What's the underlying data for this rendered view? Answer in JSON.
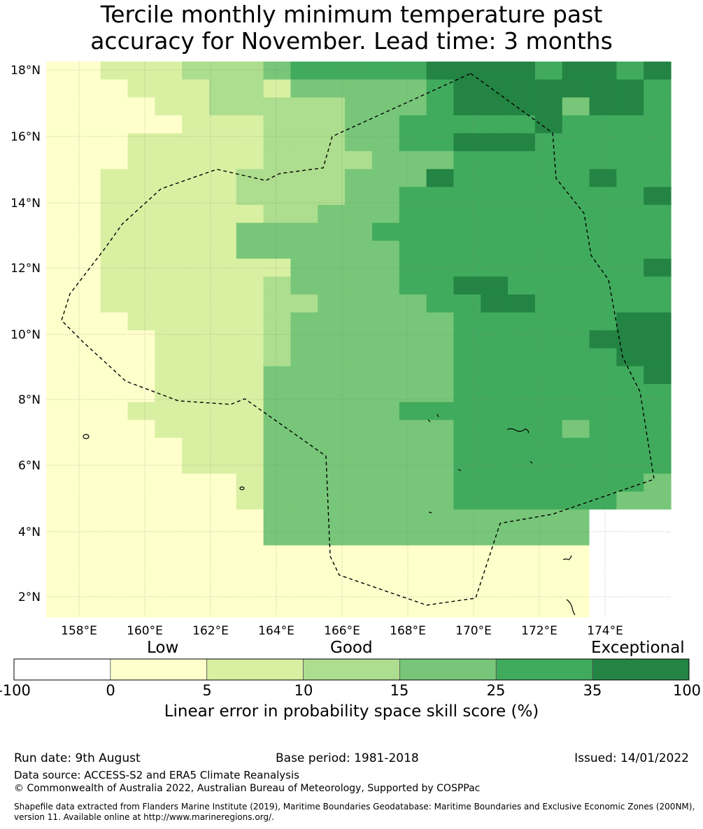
{
  "title_line1": "Tercile monthly minimum temperature past",
  "title_line2": "accuracy for November. Lead time: 3 months",
  "map": {
    "lon_labels": [
      "158°E",
      "160°E",
      "162°E",
      "164°E",
      "166°E",
      "168°E",
      "170°E",
      "172°E",
      "174°E"
    ],
    "lat_labels": [
      "18°N",
      "16°N",
      "14°N",
      "12°N",
      "10°N",
      "8°N",
      "6°N",
      "4°N",
      "2°N"
    ],
    "grid_cols": 23,
    "grid_rows": 31,
    "class_grid": [
      "11222333455555666656656",
      "11122233244444566666665",
      "11112233333444566664665",
      "11111222333445555565555",
      "11122222333445566655555",
      "11122222333344455555555",
      "11222223333444655555655",
      "11222223333445555555556",
      "11222222334445555555555",
      "11222224444455555555555",
      "11222224444445555555555",
      "11222222244445555555556",
      "11222222344445566555555",
      "11222222334444556655555",
      "11122222344444455555566",
      "11112222344444455555666",
      "11112222344444455555566",
      "11112222444444455555556",
      "11112222444444455555555",
      "11122222444445555555555",
      "11112222444444455554555",
      "11111222444444455555555",
      "11111222444444455555555",
      "11111112444444455555554",
      "11111112444444455555544",
      "11111111444444444444000",
      "11111111444444444444000",
      "11111111111111111111000",
      "11111111111111111111000",
      "11111111111111111111000",
      "11111111111111111111000"
    ],
    "class_colors": [
      "#ffffff",
      "#ffffcc",
      "#d9f0a3",
      "#addd8e",
      "#78c679",
      "#41ab5d",
      "#238443"
    ]
  },
  "colorbar": {
    "category_labels": [
      "Low",
      "Good",
      "Exceptional"
    ],
    "ticks": [
      "-100",
      "0",
      "5",
      "10",
      "15",
      "25",
      "35",
      "100"
    ],
    "colors": [
      "#ffffff",
      "#ffffcc",
      "#d9f0a3",
      "#addd8e",
      "#78c679",
      "#41ab5d",
      "#238443"
    ],
    "title": "Linear error in probability space skill score (%)"
  },
  "footer": {
    "run_date": "Run date: 9th August",
    "base_period": "Base period: 1981-2018",
    "issued": "Issued: 14/01/2022",
    "data_source": "Data source: ACCESS-S2 and ERA5 Climate Reanalysis",
    "copyright": "© Commonwealth of Australia 2022, Australian Bureau of Meteorology, Supported by COSPPac",
    "shapefile_line1": "Shapefile data extracted from Flanders Marine Institute (2019), Maritime Boundaries Geodatabase: Maritime Boundaries and Exclusive Economic Zones (200NM),",
    "shapefile_line2": "version 11. Available online at http://www.marineregions.org/."
  }
}
